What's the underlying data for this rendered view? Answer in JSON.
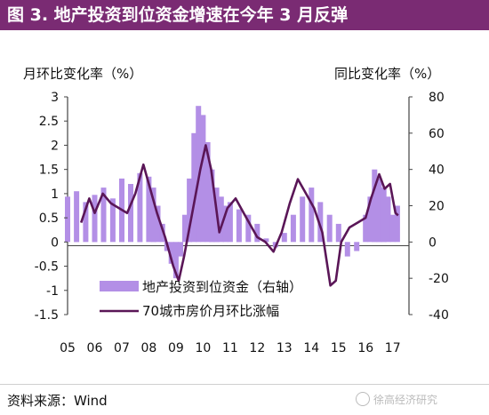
{
  "header": {
    "title": "图 3. 地产投资到位资金增速在今年 3 月反弹"
  },
  "footer": {
    "source": "资料来源：Wind",
    "watermark": "徐高经济研究"
  },
  "colors": {
    "title_bg": "#7a2b73",
    "bars": "#b38fe6",
    "line": "#5a1657"
  },
  "chart_data": {
    "type": "bar",
    "y_left_label": "月环比变化率（%）",
    "y_right_label": "同比变化率（%）",
    "x_ticks": [
      "05",
      "06",
      "07",
      "08",
      "09",
      "10",
      "11",
      "12",
      "13",
      "14",
      "15",
      "16",
      "17"
    ],
    "y_left_ticks": [
      "3",
      "2.5",
      "2",
      "1.5",
      "1",
      "0.5",
      "0",
      "-0.5",
      "-1",
      "-1.5"
    ],
    "y_right_ticks": [
      "80",
      "60",
      "40",
      "20",
      "0",
      "-20",
      "-40"
    ],
    "y_left_lim": [
      -1.5,
      3
    ],
    "y_right_lim": [
      -40,
      80
    ],
    "x_lim": [
      2005,
      2017.6
    ],
    "series": [
      {
        "name": "地产投资到位资金（右轴）",
        "type": "bar",
        "axis": "right",
        "x": [
          2005.0,
          2005.33,
          2005.67,
          2006.0,
          2006.33,
          2006.67,
          2007.0,
          2007.33,
          2007.67,
          2008.0,
          2008.17,
          2008.33,
          2008.5,
          2008.67,
          2008.83,
          2009.0,
          2009.17,
          2009.33,
          2009.5,
          2009.67,
          2009.83,
          2010.0,
          2010.17,
          2010.33,
          2010.5,
          2010.67,
          2010.83,
          2011.0,
          2011.33,
          2011.67,
          2012.0,
          2012.33,
          2012.67,
          2013.0,
          2013.33,
          2013.67,
          2014.0,
          2014.33,
          2014.67,
          2015.0,
          2015.33,
          2015.67,
          2016.0,
          2016.17,
          2016.33,
          2016.5,
          2016.67,
          2016.83,
          2017.0,
          2017.17
        ],
        "values": [
          25,
          28,
          22,
          26,
          30,
          24,
          35,
          32,
          38,
          36,
          30,
          20,
          10,
          -5,
          -12,
          -20,
          -8,
          15,
          35,
          60,
          75,
          70,
          55,
          40,
          30,
          25,
          20,
          22,
          18,
          15,
          10,
          2,
          -3,
          5,
          15,
          25,
          30,
          22,
          15,
          10,
          -8,
          -5,
          15,
          25,
          40,
          35,
          30,
          25,
          15,
          20
        ]
      },
      {
        "name": "70城市房价月环比涨幅",
        "type": "line",
        "axis": "left",
        "x": [
          2005.5,
          2005.8,
          2006.0,
          2006.3,
          2006.6,
          2006.9,
          2007.2,
          2007.5,
          2007.8,
          2008.0,
          2008.3,
          2008.6,
          2008.9,
          2009.1,
          2009.3,
          2009.6,
          2009.9,
          2010.1,
          2010.3,
          2010.6,
          2010.9,
          2011.2,
          2011.5,
          2011.8,
          2012.0,
          2012.3,
          2012.6,
          2012.9,
          2013.2,
          2013.5,
          2013.8,
          2014.1,
          2014.4,
          2014.7,
          2014.9,
          2015.1,
          2015.4,
          2015.7,
          2016.0,
          2016.2,
          2016.5,
          2016.7,
          2016.9,
          2017.1,
          2017.2
        ],
        "values": [
          0.4,
          0.9,
          0.6,
          1.0,
          0.8,
          0.7,
          0.6,
          1.0,
          1.6,
          1.2,
          0.6,
          0.1,
          -0.5,
          -0.8,
          -0.3,
          0.6,
          1.5,
          2.0,
          1.5,
          0.2,
          0.7,
          0.9,
          0.6,
          0.3,
          0.1,
          0.0,
          -0.2,
          0.2,
          0.8,
          1.3,
          1.0,
          0.7,
          0.2,
          -0.9,
          -0.8,
          0.0,
          0.3,
          0.4,
          0.5,
          0.9,
          1.4,
          1.1,
          1.2,
          0.6,
          0.55
        ]
      }
    ],
    "legend": [
      "地产投资到位资金（右轴）",
      "70城市房价月环比涨幅"
    ],
    "legend_position": "bottom-center"
  }
}
